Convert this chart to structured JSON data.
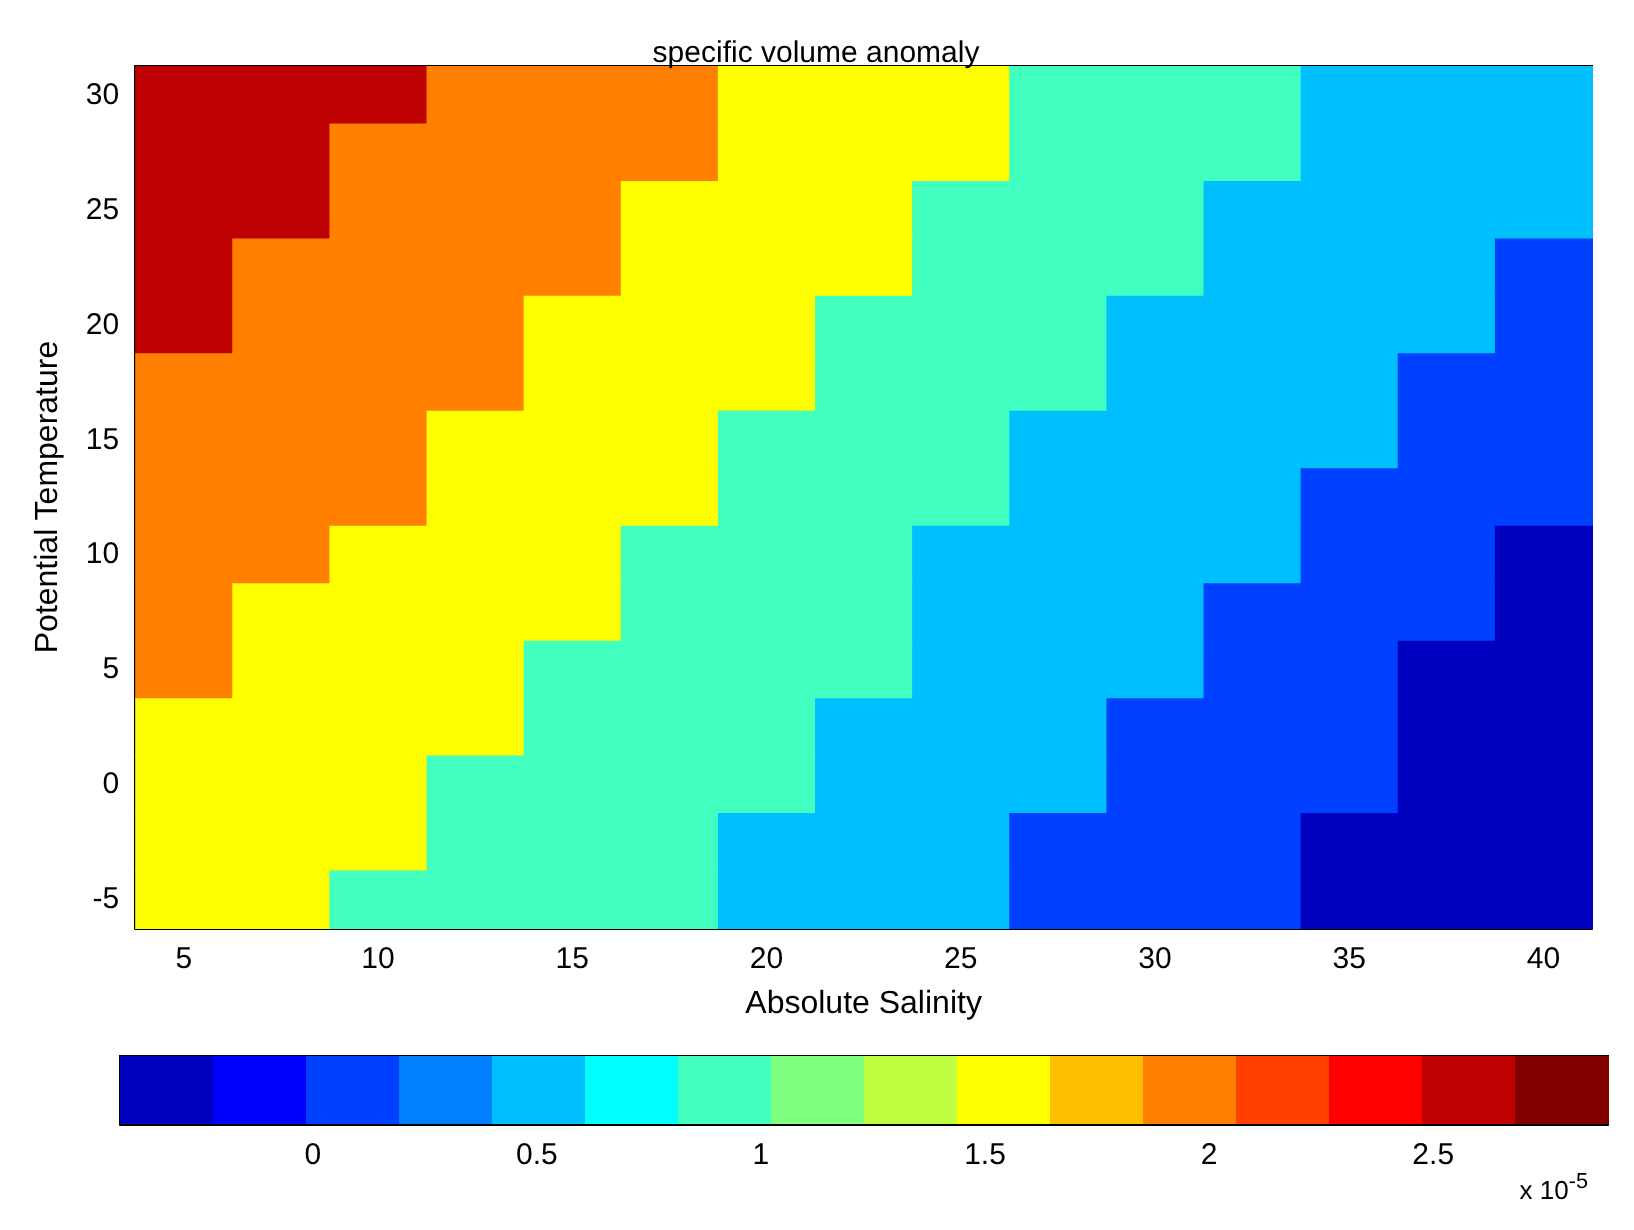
{
  "chart_data": {
    "type": "heatmap",
    "title": "specific volume anomaly",
    "xlabel": "Absolute Salinity",
    "ylabel": "Potential Temperature",
    "categories": [
      "5",
      null,
      "10",
      null,
      "15",
      null,
      "20",
      null,
      "25",
      null,
      "30",
      null,
      "35",
      null,
      "40"
    ],
    "y_categories": [
      "30",
      null,
      "25",
      null,
      "20",
      null,
      "15",
      null,
      "10",
      null,
      "5",
      null,
      "0",
      null,
      "-5"
    ],
    "clim": [
      -0.43,
      2.89
    ],
    "cticks": [
      0,
      0.5,
      1,
      1.5,
      2,
      2.5
    ],
    "colors": [
      "#0000bf",
      "#0000ff",
      "#0040ff",
      "#0080ff",
      "#00bfff",
      "#00ffff",
      "#40ffbf",
      "#80ff80",
      "#bfff40",
      "#ffff00",
      "#ffbf00",
      "#ff8000",
      "#ff4000",
      "#ff0000",
      "#bf0000",
      "#800000"
    ],
    "cells": [
      [
        2.6,
        2.6,
        2.6,
        2.0,
        2.0,
        2.0,
        1.6,
        1.6,
        1.6,
        1.0,
        1.0,
        1.0,
        0.5,
        0.5,
        0.5
      ],
      [
        2.6,
        2.6,
        2.0,
        2.0,
        2.0,
        2.0,
        1.6,
        1.6,
        1.6,
        1.0,
        1.0,
        1.0,
        0.5,
        0.5,
        0.5
      ],
      [
        2.6,
        2.6,
        2.0,
        2.0,
        2.0,
        1.6,
        1.6,
        1.6,
        1.0,
        1.0,
        1.0,
        0.5,
        0.5,
        0.5,
        0.5
      ],
      [
        2.6,
        2.0,
        2.0,
        2.0,
        2.0,
        1.6,
        1.6,
        1.6,
        1.0,
        1.0,
        1.0,
        0.5,
        0.5,
        0.5,
        0.1
      ],
      [
        2.6,
        2.0,
        2.0,
        2.0,
        1.6,
        1.6,
        1.6,
        1.0,
        1.0,
        1.0,
        0.5,
        0.5,
        0.5,
        0.5,
        0.1
      ],
      [
        2.0,
        2.0,
        2.0,
        2.0,
        1.6,
        1.6,
        1.6,
        1.0,
        1.0,
        1.0,
        0.5,
        0.5,
        0.5,
        0.1,
        0.1
      ],
      [
        2.0,
        2.0,
        2.0,
        1.6,
        1.6,
        1.6,
        1.0,
        1.0,
        1.0,
        0.5,
        0.5,
        0.5,
        0.5,
        0.1,
        0.1
      ],
      [
        2.0,
        2.0,
        2.0,
        1.6,
        1.6,
        1.6,
        1.0,
        1.0,
        1.0,
        0.5,
        0.5,
        0.5,
        0.1,
        0.1,
        0.1
      ],
      [
        2.0,
        2.0,
        1.6,
        1.6,
        1.6,
        1.0,
        1.0,
        1.0,
        0.5,
        0.5,
        0.5,
        0.5,
        0.1,
        0.1,
        -0.3
      ],
      [
        2.0,
        1.6,
        1.6,
        1.6,
        1.6,
        1.0,
        1.0,
        1.0,
        0.5,
        0.5,
        0.5,
        0.1,
        0.1,
        0.1,
        -0.3
      ],
      [
        2.0,
        1.6,
        1.6,
        1.6,
        1.0,
        1.0,
        1.0,
        1.0,
        0.5,
        0.5,
        0.5,
        0.1,
        0.1,
        -0.3,
        -0.3
      ],
      [
        1.6,
        1.6,
        1.6,
        1.6,
        1.0,
        1.0,
        1.0,
        0.5,
        0.5,
        0.5,
        0.1,
        0.1,
        0.1,
        -0.3,
        -0.3
      ],
      [
        1.6,
        1.6,
        1.6,
        1.0,
        1.0,
        1.0,
        1.0,
        0.5,
        0.5,
        0.5,
        0.1,
        0.1,
        0.1,
        -0.3,
        -0.3
      ],
      [
        1.6,
        1.6,
        1.6,
        1.0,
        1.0,
        1.0,
        0.5,
        0.5,
        0.5,
        0.1,
        0.1,
        0.1,
        -0.3,
        -0.3,
        -0.3
      ],
      [
        1.6,
        1.6,
        1.0,
        1.0,
        1.0,
        1.0,
        0.5,
        0.5,
        0.5,
        0.1,
        0.1,
        0.1,
        -0.3,
        -0.3,
        -0.3
      ]
    ],
    "annotations": [
      "x 10$^{-5}$"
    ]
  }
}
